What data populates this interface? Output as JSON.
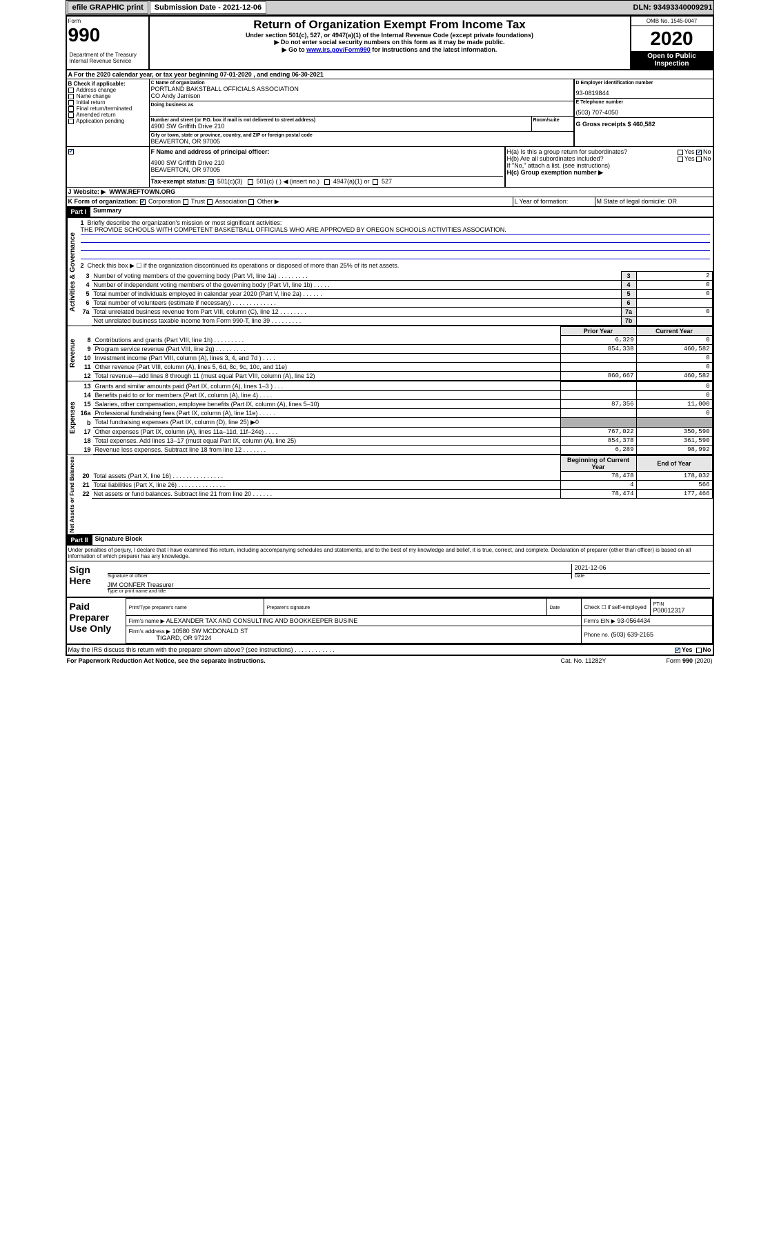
{
  "top_bar": {
    "efile": "efile GRAPHIC print",
    "submission_label": "Submission Date - 2021-12-06",
    "dln": "DLN: 93493340009291"
  },
  "header": {
    "form_word": "Form",
    "form_num": "990",
    "title": "Return of Organization Exempt From Income Tax",
    "subtitle": "Under section 501(c), 527, or 4947(a)(1) of the Internal Revenue Code (except private foundations)",
    "noshare": "▶ Do not enter social security numbers on this form as it may be made public.",
    "goto_pre": "▶ Go to ",
    "goto_link": "www.irs.gov/Form990",
    "goto_post": " for instructions and the latest information.",
    "omb": "OMB No. 1545-0047",
    "year": "2020",
    "open": "Open to Public Inspection",
    "dept1": "Department of the Treasury",
    "dept2": "Internal Revenue Service"
  },
  "sectionA": {
    "line": "A For the 2020 calendar year, or tax year beginning 07-01-2020     , and ending 06-30-2021",
    "b_label": "B Check if applicable:",
    "b_opts": [
      "Address change",
      "Name change",
      "Initial return",
      "Final return/terminated",
      "Amended return",
      "Application pending"
    ],
    "c_label": "C Name of organization",
    "org_name": "PORTLAND BAKSTBALL OFFICIALS ASSOCIATION",
    "co": "CO Andy Jamison",
    "dba_label": "Doing business as",
    "addr_label": "Number and street (or P.O. box if mail is not delivered to street address)",
    "room_label": "Room/suite",
    "addr": "4900 SW Griffith Drive 210",
    "city_label": "City or town, state or province, country, and ZIP or foreign postal code",
    "city": "BEAVERTON, OR  97005",
    "d_label": "D Employer identification number",
    "ein": "93-0819844",
    "e_label": "E Telephone number",
    "phone": "(503) 707-4050",
    "g_label": "G Gross receipts $ 460,582",
    "f_label": "F Name and address of principal officer:",
    "f_addr1": "4900 SW Griffith Drive 210",
    "f_addr2": "BEAVERTON, OR  97005",
    "ha_label": "H(a)  Is this a group return for subordinates?",
    "hb_label": "H(b)  Are all subordinates included?",
    "hb_note": "If \"No,\" attach a list. (see instructions)",
    "hc_label": "H(c)  Group exemption number ▶",
    "tax_status_label": "Tax-exempt status:",
    "status_501c3": "501(c)(3)",
    "status_501c": "501(c) (  ) ◀ (insert no.)",
    "status_4947": "4947(a)(1) or",
    "status_527": "527",
    "website_label": "Website: ▶",
    "website": "WWW.REFTOWN.ORG",
    "k_label": "K Form of organization:",
    "k_corp": "Corporation",
    "k_trust": "Trust",
    "k_assoc": "Association",
    "k_other": "Other ▶",
    "l_label": "L Year of formation:",
    "m_label": "M State of legal domicile: OR",
    "yes": "Yes",
    "no": "No"
  },
  "part1": {
    "hdr": "Part I",
    "title": "Summary",
    "q1_label": "1",
    "q1": "Briefly describe the organization's mission or most significant activities:",
    "q1_text": "THE PROVIDE SCHOOLS WITH COMPETENT BASKETBALL OFFICIALS WHO ARE APPROVED BY OREGON SCHOOLS ACTIVITIES ASSOCIATION.",
    "q2_label": "2",
    "q2": "Check this box ▶ ☐  if the organization discontinued its operations or disposed of more than 25% of its net assets.",
    "side_gov": "Activities & Governance",
    "side_rev": "Revenue",
    "side_exp": "Expenses",
    "side_net": "Net Assets or Fund Balances",
    "rows_gov": [
      {
        "n": "3",
        "t": "Number of voting members of the governing body (Part VI, line 1a)  .  .  .  .  .  .  .  .  .",
        "b": "3",
        "v": "2"
      },
      {
        "n": "4",
        "t": "Number of independent voting members of the governing body (Part VI, line 1b)  .  .  .  .  .",
        "b": "4",
        "v": "0"
      },
      {
        "n": "5",
        "t": "Total number of individuals employed in calendar year 2020 (Part V, line 2a)  .  .  .  .  .  .",
        "b": "5",
        "v": "0"
      },
      {
        "n": "6",
        "t": "Total number of volunteers (estimate if necessary)  .  .  .  .  .  .  .  .  .  .  .  .  .",
        "b": "6",
        "v": ""
      },
      {
        "n": "7a",
        "t": "Total unrelated business revenue from Part VIII, column (C), line 12  .  .  .  .  .  .  .  .",
        "b": "7a",
        "v": "0"
      },
      {
        "n": "",
        "t": "Net unrelated business taxable income from Form 990-T, line 39  .  .  .  .  .  .  .  .  .",
        "b": "7b",
        "v": ""
      }
    ],
    "col_prior": "Prior Year",
    "col_current": "Current Year",
    "col_begin": "Beginning of Current Year",
    "col_end": "End of Year",
    "rows_rev": [
      {
        "n": "8",
        "t": "Contributions and grants (Part VIII, line 1h)  .  .  .  .  .  .  .  .  .",
        "p": "6,329",
        "c": "0"
      },
      {
        "n": "9",
        "t": "Program service revenue (Part VIII, line 2g)  .  .  .  .  .  .  .  .  .",
        "p": "854,338",
        "c": "460,582"
      },
      {
        "n": "10",
        "t": "Investment income (Part VIII, column (A), lines 3, 4, and 7d )  .  .  .  .",
        "p": "",
        "c": "0"
      },
      {
        "n": "11",
        "t": "Other revenue (Part VIII, column (A), lines 5, 6d, 8c, 9c, 10c, and 11e)",
        "p": "",
        "c": "0"
      },
      {
        "n": "12",
        "t": "Total revenue—add lines 8 through 11 (must equal Part VIII, column (A), line 12)",
        "p": "860,667",
        "c": "460,582"
      }
    ],
    "rows_exp": [
      {
        "n": "13",
        "t": "Grants and similar amounts paid (Part IX, column (A), lines 1–3 )  .  .  .",
        "p": "",
        "c": "0"
      },
      {
        "n": "14",
        "t": "Benefits paid to or for members (Part IX, column (A), line 4)  .  .  .  .",
        "p": "",
        "c": "0"
      },
      {
        "n": "15",
        "t": "Salaries, other compensation, employee benefits (Part IX, column (A), lines 5–10)",
        "p": "87,356",
        "c": "11,000"
      },
      {
        "n": "16a",
        "t": "Professional fundraising fees (Part IX, column (A), line 11e)  .  .  .  .  .",
        "p": "",
        "c": "0"
      },
      {
        "n": "b",
        "t": "Total fundraising expenses (Part IX, column (D), line 25) ▶0",
        "p": "SHADE",
        "c": "SHADE"
      },
      {
        "n": "17",
        "t": "Other expenses (Part IX, column (A), lines 11a–11d, 11f–24e)  .  .  .  .",
        "p": "767,022",
        "c": "350,590"
      },
      {
        "n": "18",
        "t": "Total expenses. Add lines 13–17 (must equal Part IX, column (A), line 25)",
        "p": "854,378",
        "c": "361,590"
      },
      {
        "n": "19",
        "t": "Revenue less expenses. Subtract line 18 from line 12  .  .  .  .  .  .  .",
        "p": "6,289",
        "c": "98,992"
      }
    ],
    "rows_net": [
      {
        "n": "20",
        "t": "Total assets (Part X, line 16)  .  .  .  .  .  .  .  .  .  .  .  .  .  .  .",
        "p": "78,478",
        "c": "178,032"
      },
      {
        "n": "21",
        "t": "Total liabilities (Part X, line 26)  .  .  .  .  .  .  .  .  .  .  .  .  .  .",
        "p": "4",
        "c": "566"
      },
      {
        "n": "22",
        "t": "Net assets or fund balances. Subtract line 21 from line 20  .  .  .  .  .  .",
        "p": "78,474",
        "c": "177,466"
      }
    ]
  },
  "part2": {
    "hdr": "Part II",
    "title": "Signature Block",
    "perjury": "Under penalties of perjury, I declare that I have examined this return, including accompanying schedules and statements, and to the best of my knowledge and belief, it is true, correct, and complete. Declaration of preparer (other than officer) is based on all information of which preparer has any knowledge.",
    "sign_here": "Sign Here",
    "sig_officer": "Signature of officer",
    "date_label": "Date",
    "sig_date": "2021-12-06",
    "officer_name": "JIM CONFER Treasurer",
    "type_name": "Type or print name and title",
    "paid_prep": "Paid Preparer Use Only",
    "prep_name_label": "Print/Type preparer's name",
    "prep_sig_label": "Preparer's signature",
    "prep_check": "Check ☐ if self-employed",
    "ptin_label": "PTIN",
    "ptin": "P00012317",
    "firm_name_label": "Firm's name    ▶",
    "firm_name": "ALEXANDER TAX AND CONSULTING AND BOOKKEEPER BUSINE",
    "firm_ein_label": "Firm's EIN ▶",
    "firm_ein": "93-0564434",
    "firm_addr_label": "Firm's address ▶",
    "firm_addr1": "10580 SW MCDONALD ST",
    "firm_addr2": "TIGARD, OR  97224",
    "firm_phone_label": "Phone no.",
    "firm_phone": "(503) 639-2165",
    "discuss": "May the IRS discuss this return with the preparer shown above? (see instructions)   .   .   .   .   .   .   .   .   .   .   .   .",
    "paperwork": "For Paperwork Reduction Act Notice, see the separate instructions.",
    "cat": "Cat. No. 11282Y",
    "form_foot": "Form 990 (2020)"
  }
}
